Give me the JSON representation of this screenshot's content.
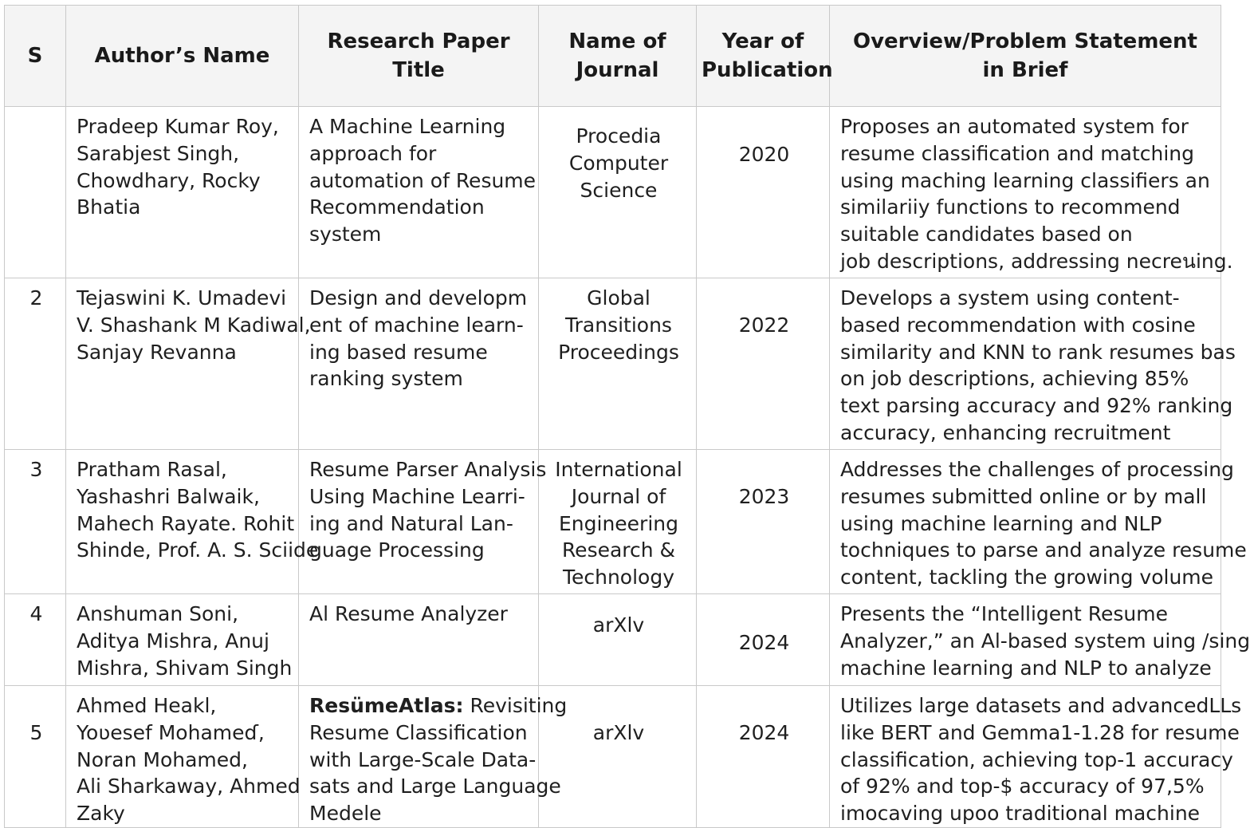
{
  "table": {
    "headers": {
      "sno": "S",
      "authors": "Author’s Name",
      "title": [
        "Research Paper",
        "Title"
      ],
      "journal": [
        "Name of",
        "Journal"
      ],
      "year": [
        "Year of",
        "Publication"
      ],
      "overview": [
        "Overview/Problem Statement",
        "in Brief"
      ]
    },
    "rows": [
      {
        "sno": "",
        "authors": [
          "Pradeep Kumar Roy,",
          "Sarabjest Singh,",
          "Chowdhary, Rocky",
          "Bhatia"
        ],
        "title": [
          "A Machine Learning",
          "approach for",
          "automation of Resume",
          "Recommendation",
          "system"
        ],
        "journal": [
          "Procedia",
          "Computer",
          "Science"
        ],
        "year": "2020",
        "overview": [
          "Proposes an automated system for",
          "resume classification and matching",
          "using maching learning classifiers an",
          "similariiy functions to recommend",
          "suitable candidates based on",
          "job descriptions, addressing necreนing."
        ]
      },
      {
        "sno": "2",
        "authors": [
          "Tejaswini K. Umadevi",
          "V. Shashank M Kadiwal,",
          "Sanjay Revanna"
        ],
        "title": [
          "Design and developm",
          "ent of machine learn-",
          "ing based resume",
          "ranking system"
        ],
        "journal": [
          "Global",
          "Transitions",
          "Proceedings"
        ],
        "year": "2022",
        "overview": [
          "Develops a system using content-",
          "based recommendation with cosine",
          "similarity and KNN to rank resumes bas",
          "on job descriptions, achieving 85%",
          "text parsing accuracy and 92% ranking",
          "accuracy, enhancing recruitment"
        ]
      },
      {
        "sno": "3",
        "authors": [
          "Pratham Rasal,",
          "Yashashri Balwaik,",
          "Mahech Rayate. Rohit",
          "Shinde, Prof. A. S. Sciide"
        ],
        "title": [
          "Resume Parser Analysis",
          "Using Machine Learri-",
          "ing and Natural Lan-",
          "guage Processing"
        ],
        "journal": [
          "International",
          "Journal of",
          "Engineering",
          "Research &",
          "Technology"
        ],
        "year": "2023",
        "overview": [
          "Addresses the challenges of processing",
          "resumes submitted online or by mall",
          "using machine learning and NLP",
          "tochniques to parse and analyze resume",
          "content, tackling the growing volume"
        ]
      },
      {
        "sno": "4",
        "authors": [
          "Anshuman Soni,",
          "Aditya Mishra, Anuj",
          "Mishra, Shivam Singh"
        ],
        "title": [
          "Al Resume Analyzer"
        ],
        "journal": [
          "arXlv"
        ],
        "year": "2024",
        "overview": [
          "Presents the “Intelligent Resume",
          "Analyzer,” an Al-based system uing /sing",
          "machine learning and NLP to analyze"
        ]
      },
      {
        "sno": "5",
        "authors": [
          "Ahmed Heakl,",
          "Yoʋesef Mohameɗ,",
          "Noran Mohamed,",
          "Ali Sharkaway, Ahmed",
          "Zaky"
        ],
        "title_bold": "ResümeAtlas:",
        "title": [
          "ResümeAtlas: Revisiting",
          "Resume Classification",
          "with Large-Scale Data-",
          "sats and Large Language",
          "Medele"
        ],
        "journal": [
          "arXlv"
        ],
        "year": "2024",
        "overview": [
          "Utilizes large datasets and advancedLLs",
          "like BERT and Gemma1-1.28 for resume",
          "classification, achieving top-1 accuracy",
          "of 92% and top-$ accuracy of 97,5%",
          "imocaving upoo traditional machine"
        ]
      }
    ]
  }
}
